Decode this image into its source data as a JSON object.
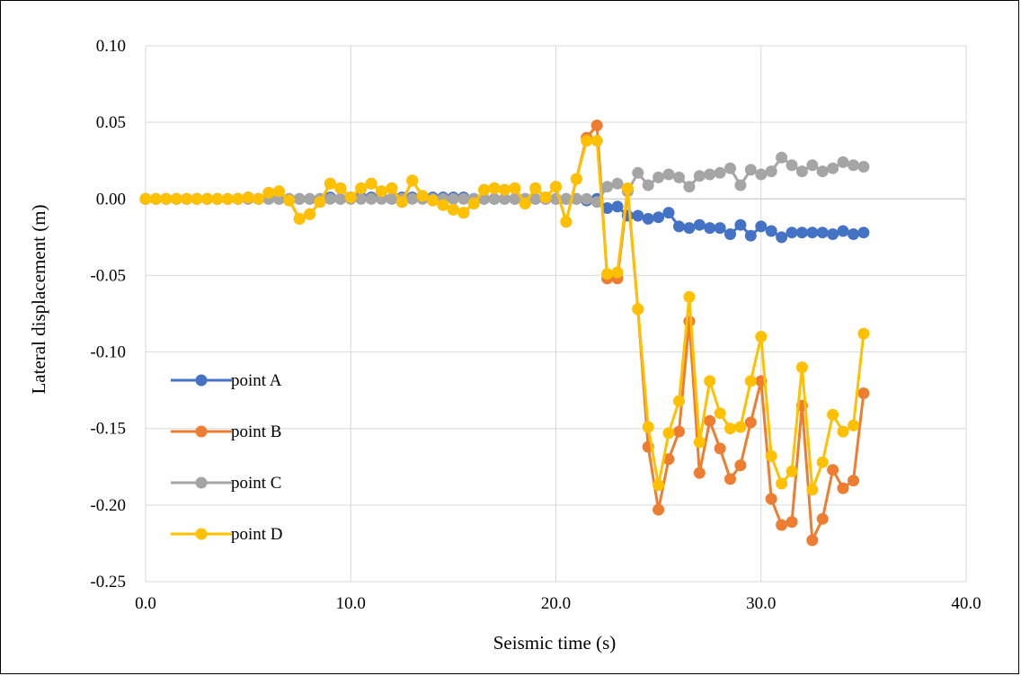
{
  "chart_data": {
    "type": "line",
    "title": "",
    "xlabel": "Seismic time (s)",
    "ylabel": "Lateral displacement (m)",
    "xlim": [
      0,
      40
    ],
    "ylim": [
      -0.25,
      0.1
    ],
    "xticks": [
      0,
      10,
      20,
      30,
      40
    ],
    "xtick_labels": [
      "0.0",
      "10.0",
      "20.0",
      "30.0",
      "40.0"
    ],
    "yticks": [
      0.1,
      0.05,
      0.0,
      -0.05,
      -0.1,
      -0.15,
      -0.2,
      -0.25
    ],
    "ytick_labels": [
      "0.10",
      "0.05",
      "0.00",
      "-0.05",
      "-0.10",
      "-0.15",
      "-0.20",
      "-0.25"
    ],
    "grid": true,
    "legend_position": "lower-left",
    "x": [
      0,
      0.5,
      1,
      1.5,
      2,
      2.5,
      3,
      3.5,
      4,
      4.5,
      5,
      5.5,
      6,
      6.5,
      7,
      7.5,
      8,
      8.5,
      9,
      9.5,
      10,
      10.5,
      11,
      11.5,
      12,
      12.5,
      13,
      13.5,
      14,
      14.5,
      15,
      15.5,
      16,
      16.5,
      17,
      17.5,
      18,
      18.5,
      19,
      19.5,
      20,
      20.5,
      21,
      21.5,
      22,
      22.5,
      23,
      23.5,
      24,
      24.5,
      25,
      25.5,
      26,
      26.5,
      27,
      27.5,
      28,
      28.5,
      29,
      29.5,
      30,
      30.5,
      31,
      31.5,
      32,
      32.5,
      33,
      33.5,
      34,
      34.5,
      35
    ],
    "series": [
      {
        "name": "point A",
        "color": "#4472C4",
        "values": [
          0,
          0,
          0,
          0,
          0,
          0,
          0,
          0,
          0,
          0,
          0.001,
          0,
          0,
          0,
          0,
          0,
          0,
          0,
          0.001,
          0,
          0.001,
          0.001,
          0.001,
          0.001,
          0,
          0.001,
          0.001,
          0.001,
          0.001,
          0.001,
          0.001,
          0.001,
          0,
          0,
          0,
          0,
          0,
          0,
          0,
          0,
          0,
          0,
          0,
          -0.001,
          0,
          -0.006,
          -0.005,
          -0.011,
          -0.011,
          -0.013,
          -0.012,
          -0.009,
          -0.018,
          -0.019,
          -0.017,
          -0.019,
          -0.019,
          -0.023,
          -0.017,
          -0.024,
          -0.018,
          -0.021,
          -0.025,
          -0.022,
          -0.022,
          -0.022,
          -0.022,
          -0.023,
          -0.021,
          -0.023,
          -0.022
        ]
      },
      {
        "name": "point B",
        "color": "#ED7D31",
        "values": [
          0,
          0,
          0,
          0,
          0,
          0,
          0,
          0,
          0,
          0,
          0,
          0,
          0.004,
          0.005,
          -0.001,
          -0.013,
          -0.01,
          -0.002,
          0.01,
          0.007,
          0.001,
          0.007,
          0.01,
          0.005,
          0.007,
          -0.002,
          0.012,
          0.002,
          -0.001,
          -0.004,
          -0.007,
          -0.009,
          -0.003,
          0.006,
          0.007,
          0.006,
          0.007,
          -0.003,
          0.007,
          0.001,
          0.008,
          -0.015,
          0.013,
          0.04,
          0.048,
          -0.052,
          -0.052,
          0.005,
          -0.072,
          -0.162,
          -0.203,
          -0.17,
          -0.152,
          -0.08,
          -0.179,
          -0.145,
          -0.163,
          -0.183,
          -0.174,
          -0.146,
          -0.119,
          -0.196,
          -0.213,
          -0.211,
          -0.135,
          -0.223,
          -0.209,
          -0.177,
          -0.189,
          -0.184,
          -0.127
        ]
      },
      {
        "name": "point C",
        "color": "#A5A5A5",
        "values": [
          0,
          0,
          0,
          0,
          0,
          0,
          0,
          0,
          0,
          0,
          0,
          0,
          0,
          0,
          0,
          0,
          0,
          0,
          0,
          0,
          0,
          0,
          0,
          0,
          0,
          0,
          0,
          0,
          0,
          0,
          0,
          0,
          0,
          0,
          0,
          0,
          0,
          0,
          0,
          0,
          0,
          0,
          0,
          0,
          -0.002,
          0.008,
          0.01,
          0.005,
          0.017,
          0.009,
          0.014,
          0.016,
          0.014,
          0.008,
          0.015,
          0.016,
          0.017,
          0.02,
          0.009,
          0.019,
          0.016,
          0.018,
          0.027,
          0.022,
          0.018,
          0.022,
          0.018,
          0.02,
          0.024,
          0.022,
          0.021
        ]
      },
      {
        "name": "point D",
        "color": "#FFC000",
        "values": [
          0,
          0,
          0,
          0,
          0,
          0,
          0,
          0,
          0,
          0,
          0.001,
          0,
          0.004,
          0.005,
          -0.001,
          -0.013,
          -0.01,
          -0.002,
          0.01,
          0.007,
          0.001,
          0.007,
          0.01,
          0.005,
          0.007,
          -0.002,
          0.012,
          0.002,
          -0.001,
          -0.004,
          -0.007,
          -0.009,
          -0.003,
          0.006,
          0.007,
          0.006,
          0.007,
          -0.003,
          0.007,
          0.001,
          0.008,
          -0.015,
          0.013,
          0.038,
          0.038,
          -0.049,
          -0.048,
          0.007,
          -0.072,
          -0.149,
          -0.187,
          -0.153,
          -0.132,
          -0.064,
          -0.159,
          -0.119,
          -0.14,
          -0.15,
          -0.149,
          -0.119,
          -0.09,
          -0.168,
          -0.186,
          -0.178,
          -0.11,
          -0.19,
          -0.172,
          -0.141,
          -0.152,
          -0.148,
          -0.088
        ]
      }
    ]
  }
}
